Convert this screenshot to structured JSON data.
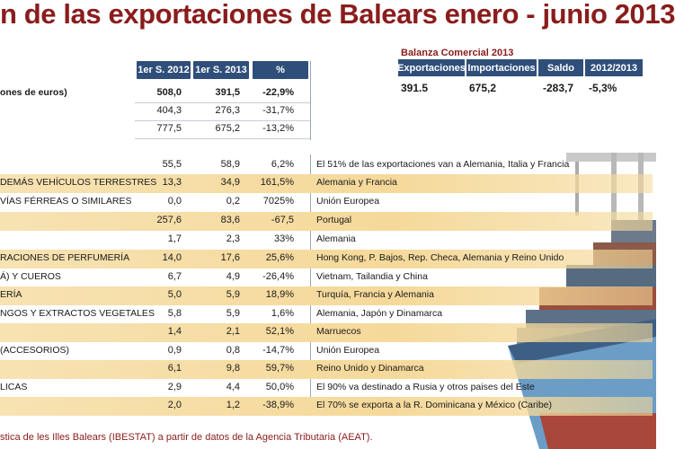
{
  "title": "n de las exportaciones de Balears enero - junio 2013",
  "table": {
    "headers": [
      "1er S. 2012",
      "1er S. 2013",
      "%"
    ]
  },
  "balanza": {
    "title": "Balanza Comercial 2013",
    "headers": [
      "Exportaciones",
      "Importaciones",
      "Saldo",
      "2012/2013"
    ],
    "values": [
      "391.5",
      "675,2",
      "-283,7",
      "-5,3%"
    ]
  },
  "source": "stica de les Illes Balears (IBESTAT) a partir de datos de la Agencia Tributaria (AEAT).",
  "chart_data": {
    "type": "table",
    "title": "n de las exportaciones de Balears enero - junio 2013",
    "columns": [
      "",
      "1er S. 2012",
      "1er S. 2013",
      "%",
      ""
    ],
    "rows": [
      {
        "label": "ones de euros)",
        "s2012": "508,0",
        "s2013": "391,5",
        "pct": "-22,9%",
        "dest": ""
      },
      {
        "label": "",
        "s2012": "404,3",
        "s2013": "276,3",
        "pct": "-31,7%",
        "dest": ""
      },
      {
        "label": "",
        "s2012": "777,5",
        "s2013": "675,2",
        "pct": "-13,2%",
        "dest": ""
      },
      {
        "label": "",
        "s2012": "55,5",
        "s2013": "58,9",
        "pct": "6,2%",
        "dest": "El 51% de las exportaciones van a Alemania, Italia y Francia"
      },
      {
        "label": "DEMÁS VEHÍCULOS TERRESTRES",
        "s2012": "13,3",
        "s2013": "34,9",
        "pct": "161,5%",
        "dest": "Alemania y Francia"
      },
      {
        "label": "VÍAS FÉRREAS O SIMILARES",
        "s2012": "0,0",
        "s2013": "0,2",
        "pct": "7025%",
        "dest": "Unión Europea"
      },
      {
        "label": "",
        "s2012": "257,6",
        "s2013": "83,6",
        "pct": "-67,5",
        "dest": "Portugal"
      },
      {
        "label": "",
        "s2012": "1,7",
        "s2013": "2,3",
        "pct": "33%",
        "dest": "Alemania"
      },
      {
        "label": "RACIONES DE PERFUMERÍA",
        "s2012": "14,0",
        "s2013": "17,6",
        "pct": "25,6%",
        "dest": "Hong Kong, P. Bajos, Rep. Checa, Alemania y Reino Unido"
      },
      {
        "label": "Á) Y CUEROS",
        "s2012": "6,7",
        "s2013": "4,9",
        "pct": "-26,4%",
        "dest": "Vietnam, Tailandia y China"
      },
      {
        "label": "ERÍA",
        "s2012": "5,0",
        "s2013": "5,9",
        "pct": "18,9%",
        "dest": "Turquía, Francia y Alemania"
      },
      {
        "label": "NGOS Y EXTRACTOS VEGETALES",
        "s2012": "5,8",
        "s2013": "5,9",
        "pct": "1,6%",
        "dest": "Alemania, Japón y Dinamarca"
      },
      {
        "label": "",
        "s2012": "1,4",
        "s2013": "2,1",
        "pct": "52,1%",
        "dest": "Marruecos"
      },
      {
        "label": "(ACCESORIOS)",
        "s2012": "0,9",
        "s2013": "0,8",
        "pct": "-14,7%",
        "dest": "Unión Europea"
      },
      {
        "label": "",
        "s2012": "6,1",
        "s2013": "9,8",
        "pct": "59,7%",
        "dest": "Reino Unido y Dinamarca"
      },
      {
        "label": "LICAS",
        "s2012": "2,9",
        "s2013": "4,4",
        "pct": "50,0%",
        "dest": "El 90% va destinado a Rusia y otros paises del Este"
      },
      {
        "label": "",
        "s2012": "2,0",
        "s2013": "1,2",
        "pct": "-38,9%",
        "dest": "El 70% se exporta a la R. Dominicana y México (Caribe)"
      }
    ]
  },
  "colors": {
    "title": "#8a1c1c",
    "header": "#2f4f7a",
    "highlight": "#f5d99a"
  }
}
